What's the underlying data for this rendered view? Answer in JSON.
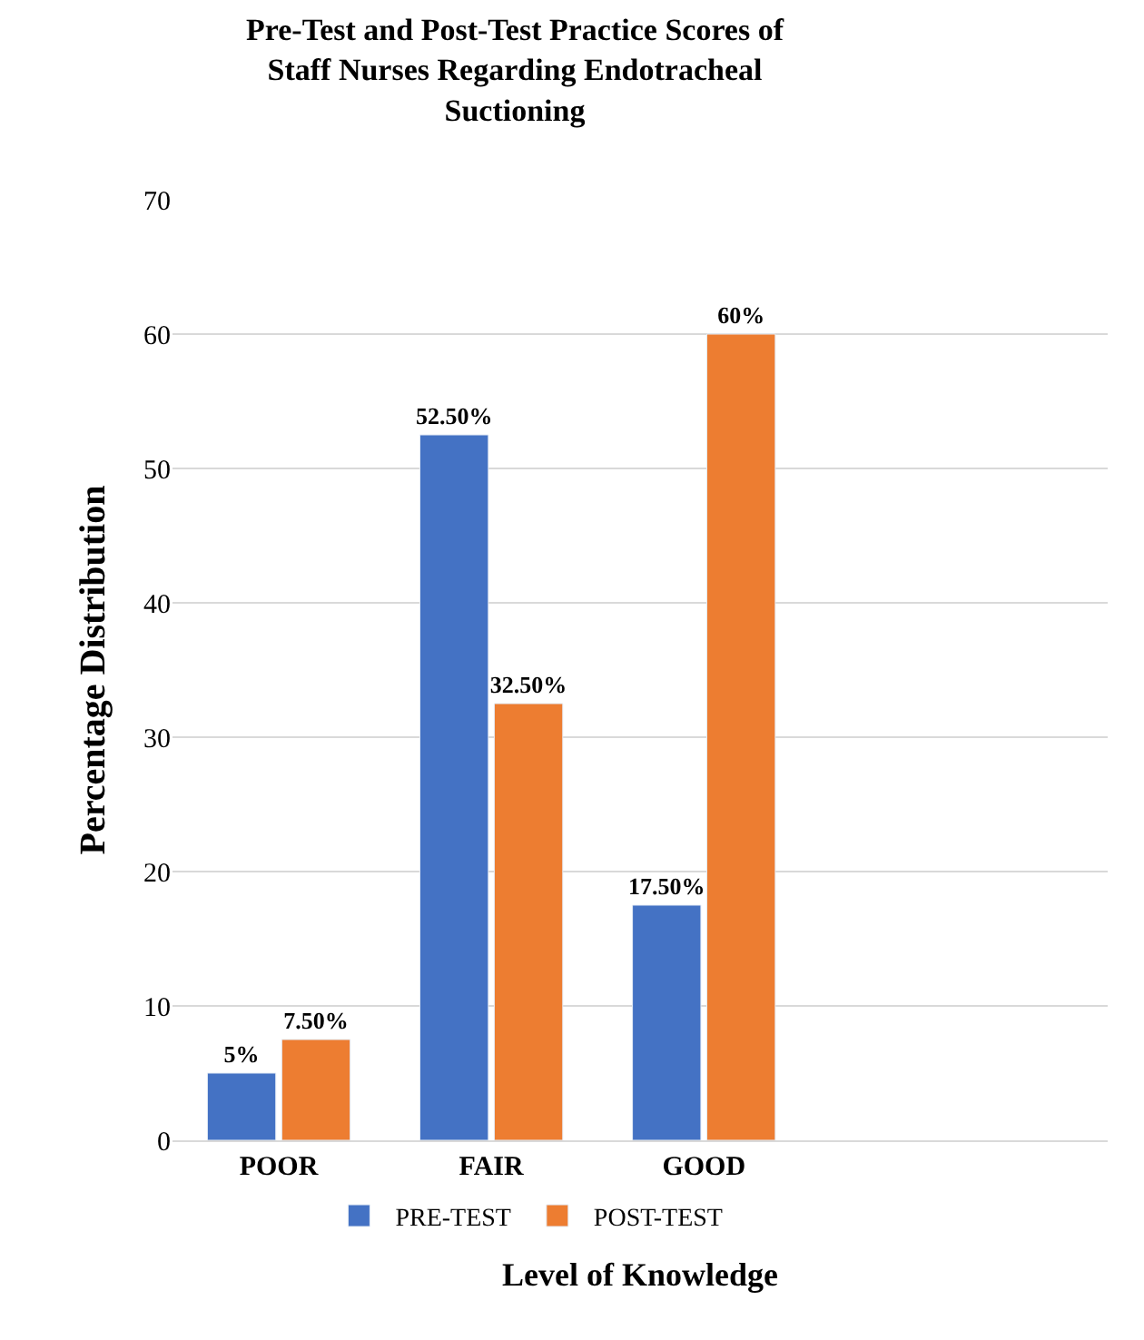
{
  "chart_data": {
    "type": "bar",
    "title": "Pre-Test and Post-Test Practice Scores of Staff Nurses Regarding Endotracheal Suctioning",
    "xlabel": "Level of Knowledge",
    "ylabel": "Percentage Distribution",
    "categories": [
      "POOR",
      "FAIR",
      "GOOD"
    ],
    "series": [
      {
        "name": "PRE-TEST",
        "color": "#4472c4",
        "values": [
          5,
          52.5,
          17.5
        ],
        "value_labels": [
          "5%",
          "52.50%",
          "17.50%"
        ]
      },
      {
        "name": "POST-TEST",
        "color": "#ed7d31",
        "values": [
          7.5,
          32.5,
          60
        ],
        "value_labels": [
          "7.50%",
          "32.50%",
          "60%"
        ]
      }
    ],
    "ylim": [
      0,
      70
    ],
    "yticks": [
      0,
      10,
      20,
      30,
      40,
      50,
      60,
      70
    ],
    "grid": "y",
    "legend": "bottom"
  }
}
